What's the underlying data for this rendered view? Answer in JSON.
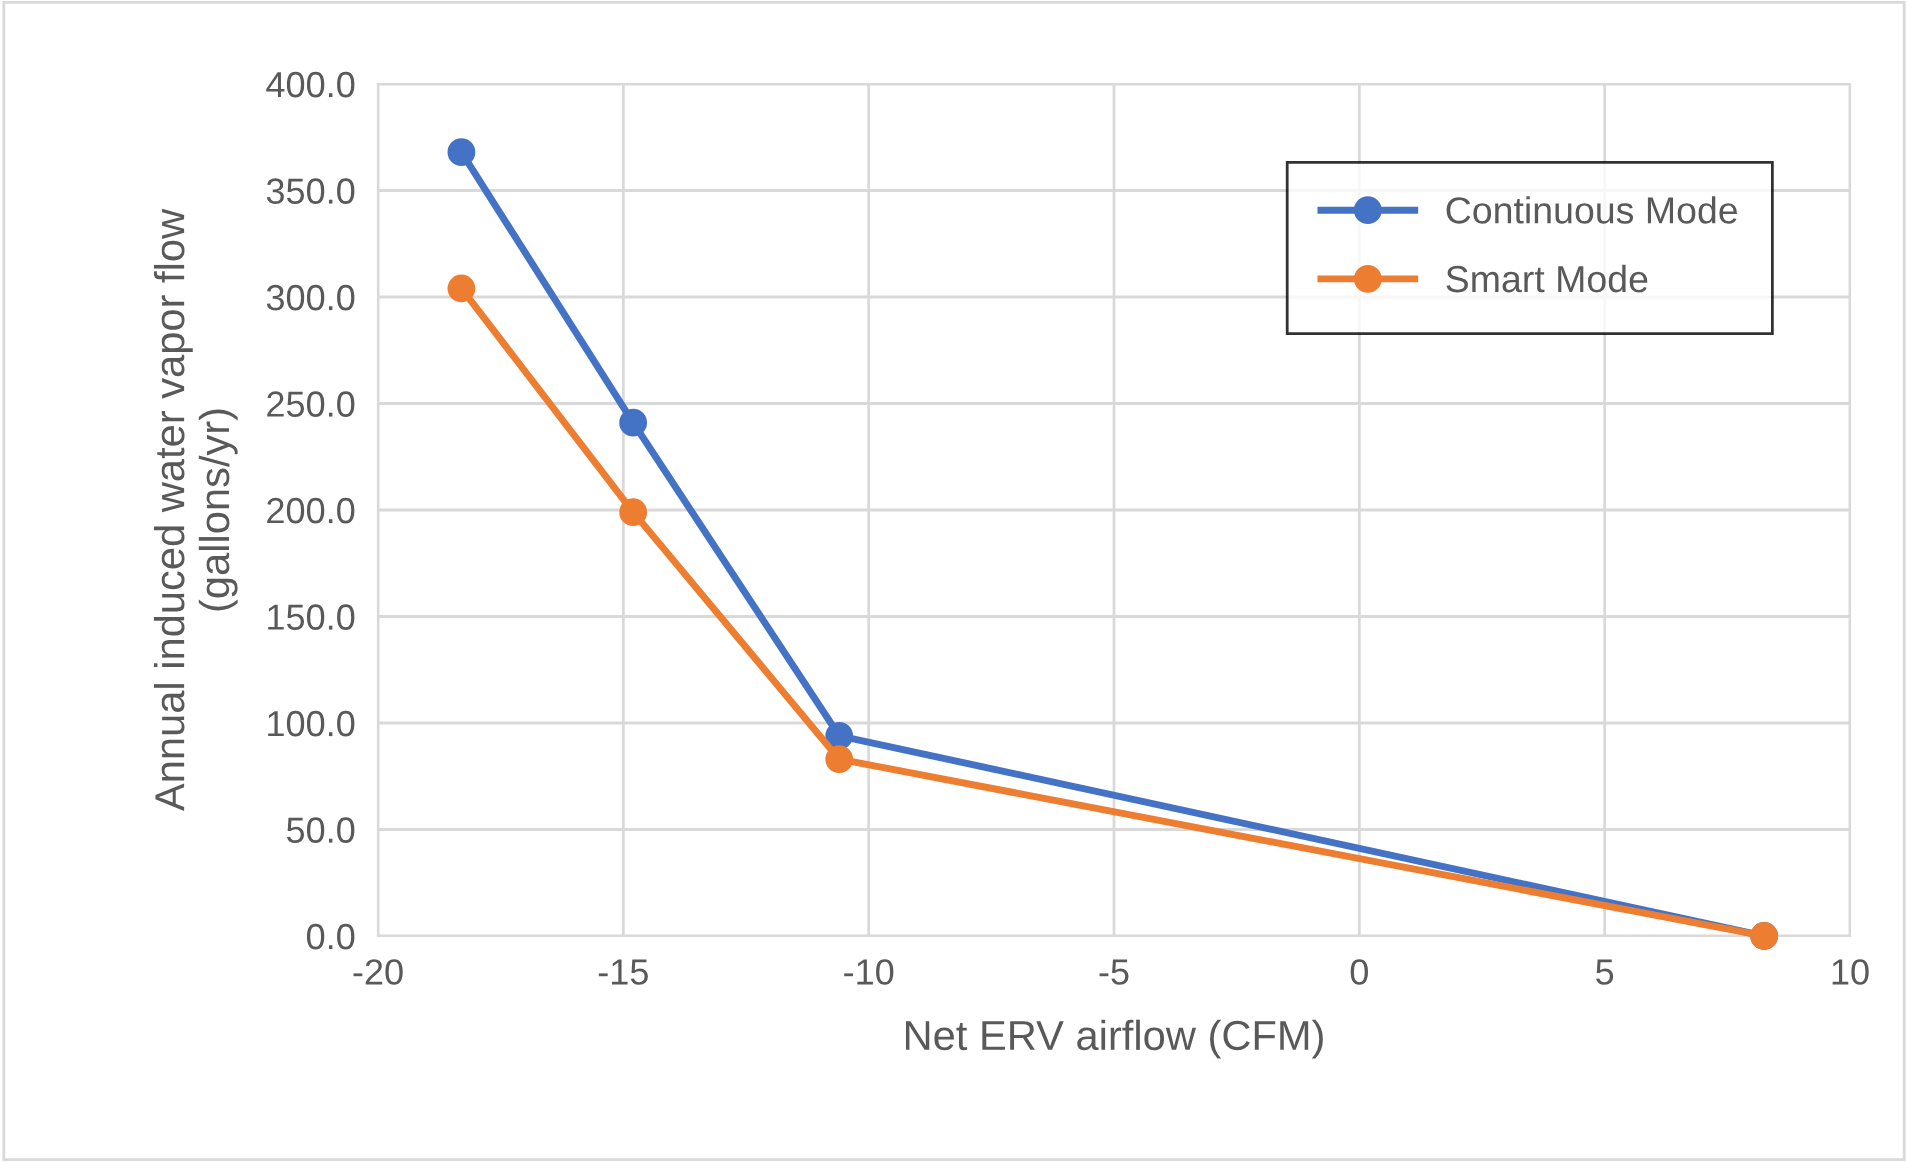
{
  "chart_data": {
    "type": "line",
    "xlabel": "Net ERV airflow (CFM)",
    "ylabel": "Annual induced water vapor flow\n(gallons/yr)",
    "x": [
      -18.3,
      -14.8,
      -10.6,
      8.25
    ],
    "series": [
      {
        "name": "Continuous Mode",
        "color": "#4472c4",
        "values": [
          368,
          241,
          94,
          0
        ]
      },
      {
        "name": "Smart Mode",
        "color": "#ed7d31",
        "values": [
          304,
          199,
          83,
          0
        ]
      }
    ],
    "xlim": [
      -20,
      10
    ],
    "xticks": [
      -20,
      -15,
      -10,
      -5,
      0,
      5,
      10
    ],
    "ylim": [
      0,
      400
    ],
    "yticks": [
      {
        "value": 0,
        "label": "0.0"
      },
      {
        "value": 50,
        "label": "50.0"
      },
      {
        "value": 100,
        "label": "100.0"
      },
      {
        "value": 150,
        "label": "150.0"
      },
      {
        "value": 200,
        "label": "200.0"
      },
      {
        "value": 250,
        "label": "250.0"
      },
      {
        "value": 300,
        "label": "300.0"
      },
      {
        "value": 350,
        "label": "350.0"
      },
      {
        "value": 400,
        "label": "400.0"
      }
    ],
    "grid": true,
    "legend": "top right",
    "marker": "circle",
    "line_style": "solid"
  }
}
